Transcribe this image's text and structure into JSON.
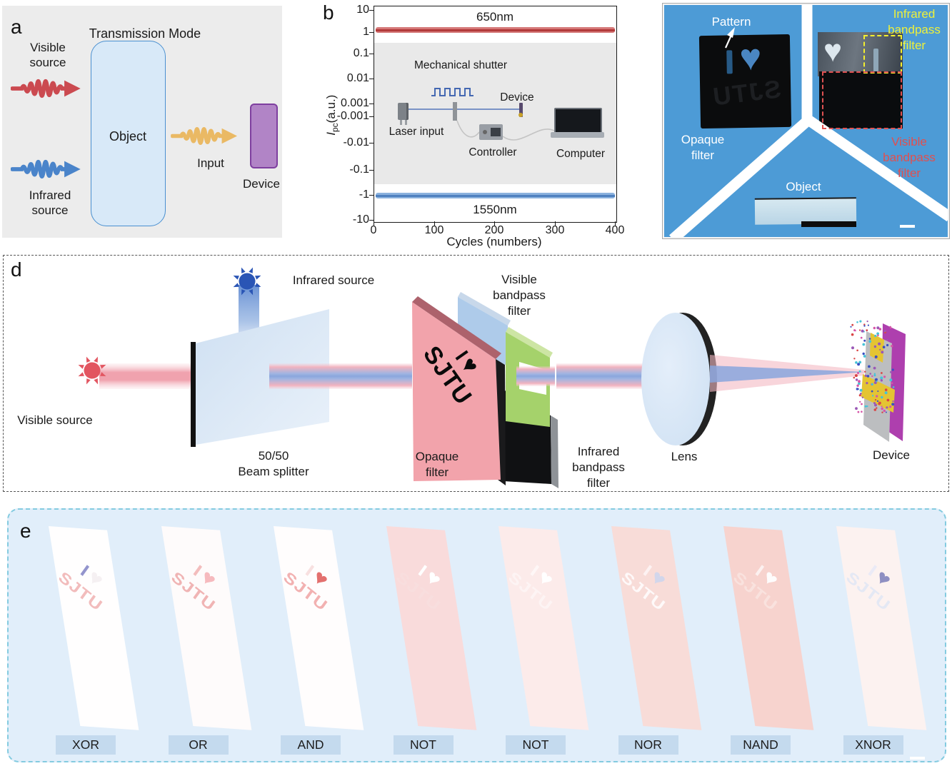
{
  "panel_a": {
    "label": "a",
    "title": "Transmission Mode",
    "visible_source": "Visible source",
    "infrared_source": "Infrared source",
    "object_label": "Object",
    "input_label": "Input",
    "device_label": "Device"
  },
  "panel_b": {
    "label": "b",
    "ylabel_i": "I",
    "ylabel_sub": "pc",
    "ylabel_units": "(a.u.)",
    "xlabel": "Cycles (numbers)",
    "yticks": [
      "10",
      "1",
      "0.1",
      "0.01",
      "0.001",
      "-0.001",
      "-0.01",
      "-0.1",
      "-1",
      "-10"
    ],
    "xticks": [
      "0",
      "100",
      "200",
      "300",
      "400"
    ],
    "label_650": "650nm",
    "label_1550": "1550nm",
    "inset": {
      "mechanical_shutter": "Mechanical shutter",
      "laser_input": "Laser input",
      "device": "Device",
      "controller": "Controller",
      "computer": "Computer"
    }
  },
  "panel_c": {
    "pattern": "Pattern",
    "opaque_filter": "Opaque filter",
    "infrared_bandpass": "Infrared bandpass filter",
    "visible_bandpass": "Visible bandpass filter",
    "object": "Object",
    "pattern_i": "I",
    "pattern_heart": "♥",
    "pattern_sjtu": "SJTU"
  },
  "panel_d": {
    "label": "d",
    "infrared_source": "Infrared source",
    "visible_source": "Visible source",
    "beam_splitter_l1": "50/50",
    "beam_splitter_l2": "Beam splitter",
    "opaque_filter": "Opaque filter",
    "visible_bandpass": "Visible bandpass filter",
    "infrared_bandpass": "Infrared bandpass filter",
    "lens": "Lens",
    "device": "Device",
    "pattern_i": "I",
    "pattern_heart": "♥",
    "pattern_sjtu": "SJTU"
  },
  "panel_e": {
    "label": "e",
    "pattern_i": "I",
    "pattern_heart": "♥",
    "pattern_sjtu": "SJTU",
    "gates": [
      {
        "label": "XOR",
        "bg": "#fffefe",
        "i": "#9394cd",
        "heart": "#f5f0f2",
        "sjtu": "#f2bcbc"
      },
      {
        "label": "OR",
        "bg": "#fefbfb",
        "i": "#f3bdbd",
        "heart": "#f6babe",
        "sjtu": "#f0b4b4"
      },
      {
        "label": "AND",
        "bg": "#fffdfd",
        "i": "#f8e0e0",
        "heart": "#e3706e",
        "sjtu": "#f2b1b1"
      },
      {
        "label": "NOT",
        "bg": "#f9dbdb",
        "i": "#ffffff",
        "heart": "#ffffff",
        "sjtu": "#f8dede"
      },
      {
        "label": "NOT",
        "bg": "#fcebea",
        "i": "#fef7f7",
        "heart": "#ffffff",
        "sjtu": "#fdf4f4"
      },
      {
        "label": "NOR",
        "bg": "#f8dcd8",
        "i": "#fdf2f2",
        "heart": "#d2d6eb",
        "sjtu": "#fef9f9"
      },
      {
        "label": "NAND",
        "bg": "#f7d3ce",
        "i": "#fcf1f0",
        "heart": "#fefcfc",
        "sjtu": "#f9e2de"
      },
      {
        "label": "XNOR",
        "bg": "#fcf2f0",
        "i": "#eaeaf6",
        "heart": "#8e8fc2",
        "sjtu": "#e4e8f4"
      }
    ]
  },
  "colors": {
    "photo_bg": "#4d9bd6",
    "series_650": "#c24848",
    "series_1550": "#6f9fd8",
    "visible_beam": "#f0a2ae",
    "infrared_beam": "#8aa6dd",
    "opaque_filter_pink": "#f2a3ab",
    "visible_bandpass_blue": "#aecbea",
    "green_filter": "#a5d26b",
    "infrared_bandpass_black": "#101113",
    "gate_label_bg": "#c4daee",
    "panel_e_bg": "#e1eefa",
    "infrared_label_yellow": "#eef03a",
    "visible_label_red": "#e14f4f"
  },
  "chart_data": {
    "type": "line",
    "title": "",
    "xlabel": "Cycles (numbers)",
    "ylabel": "Ipc (a.u.)",
    "yscale": "symlog",
    "xlim": [
      0,
      400
    ],
    "ylim": [
      -10,
      10
    ],
    "xticks": [
      0,
      100,
      200,
      300,
      400
    ],
    "yticks": [
      10,
      1,
      0.1,
      0.01,
      0.001,
      -0.001,
      -0.01,
      -0.1,
      -1,
      -10
    ],
    "grid": false,
    "legend_position": "inline-annotations",
    "series": [
      {
        "name": "650nm",
        "color": "#c24848",
        "x": [
          0,
          400
        ],
        "y": [
          1,
          1
        ]
      },
      {
        "name": "1550nm",
        "color": "#6f9fd8",
        "x": [
          0,
          400
        ],
        "y": [
          -1,
          -1
        ]
      }
    ]
  }
}
